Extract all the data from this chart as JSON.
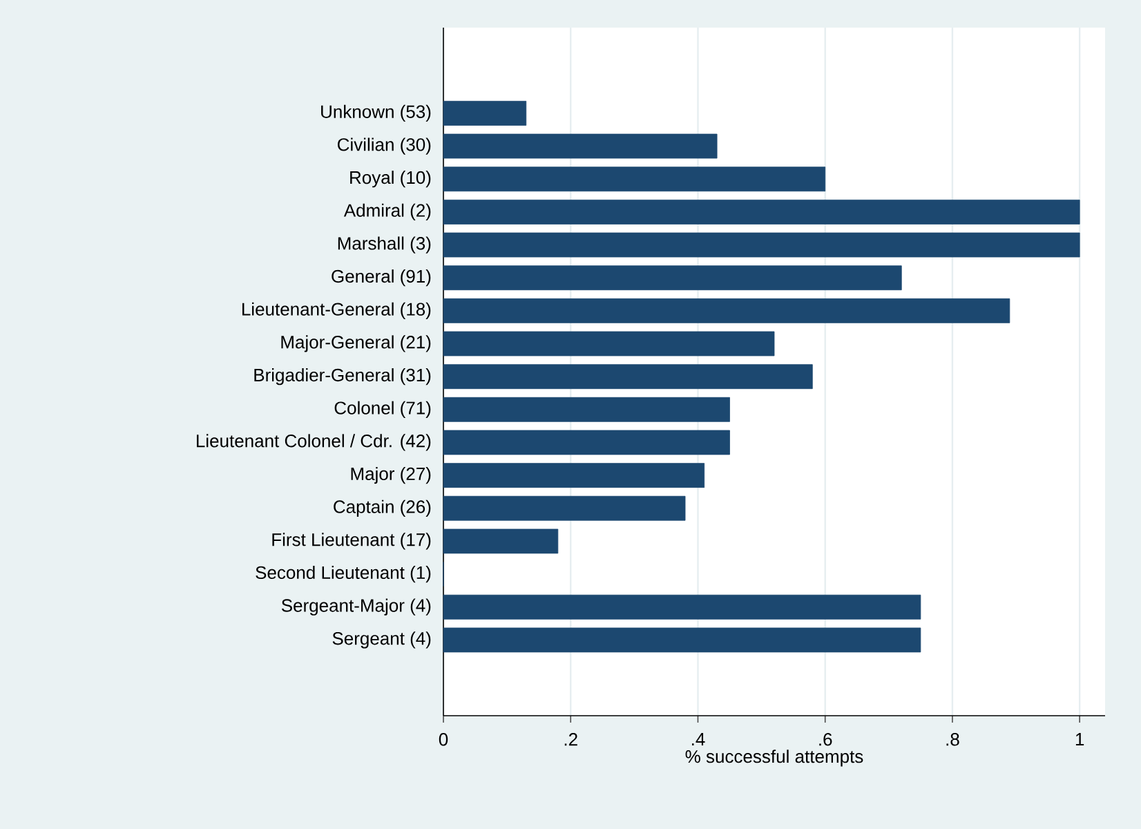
{
  "chart_data": {
    "type": "bar",
    "orientation": "horizontal",
    "xlabel": "% successful attempts",
    "categories": [
      "Unknown (53)",
      "Civilian (30)",
      "Royal (10)",
      "Admiral (2)",
      "Marshall (3)",
      "General (91)",
      "Lieutenant-General (18)",
      "Major-General (21)",
      "Brigadier-General (31)",
      "Colonel (71)",
      "Lieutenant Colonel / Cdr. (42)",
      "Major (27)",
      "Captain (26)",
      "First Lieutenant (17)",
      "Second Lieutenant (1)",
      "Sergeant-Major (4)",
      "Sergeant (4)"
    ],
    "values": [
      0.13,
      0.43,
      0.6,
      1,
      1,
      0.72,
      0.89,
      0.52,
      0.58,
      0.45,
      0.45,
      0.41,
      0.38,
      0.18,
      0,
      0.75,
      0.75
    ],
    "color": "#1c4870",
    "xlim": [
      0,
      1.04
    ],
    "xticks": [
      0,
      {
        "value": 0.2,
        "label": ".2"
      },
      {
        "value": 0.4,
        "label": ".4"
      },
      {
        "value": 0.6,
        "label": ".6"
      },
      {
        "value": 0.8,
        "label": ".8"
      },
      1
    ],
    "grid": "x"
  }
}
